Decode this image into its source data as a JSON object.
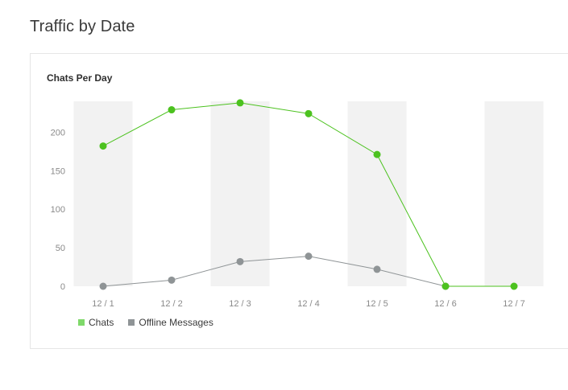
{
  "page": {
    "section_title": "Traffic by Date"
  },
  "panel": {
    "title": "Chats Per Day"
  },
  "chart_data": {
    "type": "line",
    "title": "Chats Per Day",
    "xlabel": "",
    "ylabel": "",
    "categories": [
      "12 / 1",
      "12 / 2",
      "12 / 3",
      "12 / 4",
      "12 / 5",
      "12 / 6",
      "12 / 7"
    ],
    "ylim": [
      0,
      240
    ],
    "yticks": [
      0,
      50,
      100,
      150,
      200
    ],
    "grid": "alternating vertical bands",
    "legend_position": "bottom-left",
    "series": [
      {
        "name": "Chats",
        "color": "#4cc21f",
        "legend_color": "#7fd96a",
        "values": [
          182,
          229,
          238,
          224,
          171,
          0,
          0
        ]
      },
      {
        "name": "Offline Messages",
        "color": "#8f9496",
        "legend_color": "#8f9496",
        "values": [
          0,
          8,
          32,
          39,
          22,
          0,
          null
        ]
      }
    ]
  }
}
